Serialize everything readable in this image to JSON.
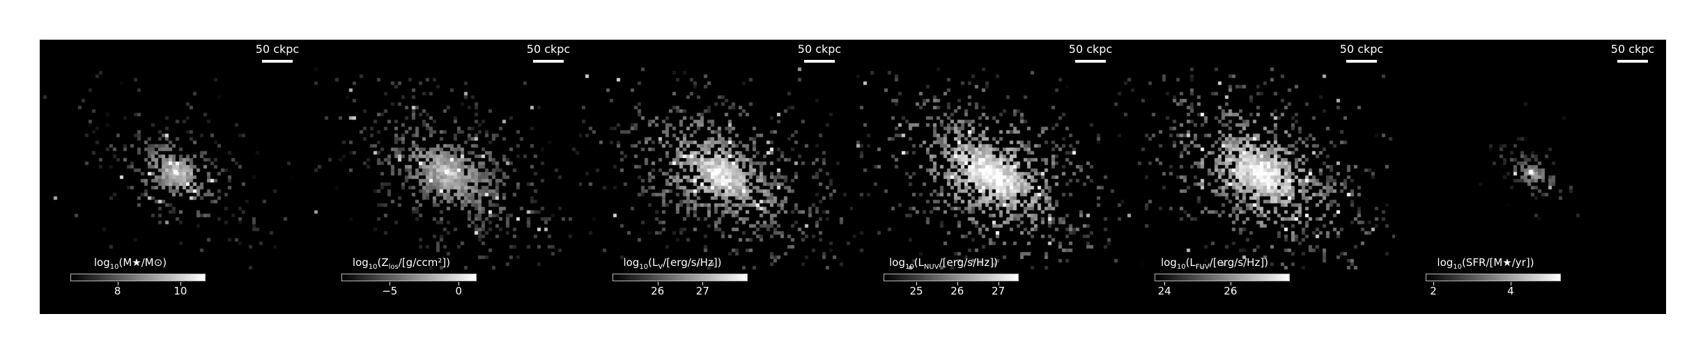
{
  "scale_bar_label": "50 ckpc",
  "panels": [
    {
      "id": "mass",
      "cb_prefix": "log",
      "cb_base": "10",
      "cb_text": "(M★/M⊙)",
      "cb_sub": "",
      "cb_suffix": "",
      "cb_range": [
        6.5,
        10.8
      ],
      "ticks": [
        {
          "value": 8,
          "label": "8"
        },
        {
          "value": 10,
          "label": "10"
        }
      ],
      "brightness": 0.75,
      "spread": 0.85
    },
    {
      "id": "metallicity",
      "cb_prefix": "log",
      "cb_base": "10",
      "cb_text": "(Z",
      "cb_sub": "los",
      "cb_suffix": "/[g/ccm²])",
      "cb_range": [
        -8.5,
        1.3
      ],
      "ticks": [
        {
          "value": -5,
          "label": "−5"
        },
        {
          "value": 0,
          "label": "0"
        }
      ],
      "brightness": 0.7,
      "spread": 1.25
    },
    {
      "id": "v-band",
      "cb_prefix": "log",
      "cb_base": "10",
      "cb_text": "(L",
      "cb_sub": "V",
      "cb_suffix": "/[erg/s/Hz])",
      "cb_range": [
        25.0,
        28.0
      ],
      "ticks": [
        {
          "value": 26,
          "label": "26"
        },
        {
          "value": 27,
          "label": "27"
        }
      ],
      "brightness": 0.85,
      "spread": 1.4
    },
    {
      "id": "nuv",
      "cb_prefix": "log",
      "cb_base": "10",
      "cb_text": "(L",
      "cb_sub": "NUV",
      "cb_suffix": "/[erg/s/Hz])",
      "cb_range": [
        24.2,
        27.5
      ],
      "ticks": [
        {
          "value": 25,
          "label": "25"
        },
        {
          "value": 26,
          "label": "26"
        },
        {
          "value": 27,
          "label": "27"
        }
      ],
      "brightness": 0.95,
      "spread": 1.45
    },
    {
      "id": "fuv",
      "cb_prefix": "log",
      "cb_base": "10",
      "cb_text": "(L",
      "cb_sub": "FUV",
      "cb_suffix": "/[erg/s/Hz])",
      "cb_range": [
        23.7,
        27.8
      ],
      "ticks": [
        {
          "value": 24,
          "label": "24"
        },
        {
          "value": 26,
          "label": "26"
        }
      ],
      "brightness": 0.95,
      "spread": 1.45
    },
    {
      "id": "sfr",
      "cb_prefix": "log",
      "cb_base": "10",
      "cb_text": "(SFR/[M★/yr])",
      "cb_sub": "",
      "cb_suffix": "",
      "cb_range": [
        1.8,
        5.3
      ],
      "ticks": [
        {
          "value": 2,
          "label": "2"
        },
        {
          "value": 4,
          "label": "4"
        }
      ],
      "brightness": 0.6,
      "spread": 0.45
    }
  ]
}
